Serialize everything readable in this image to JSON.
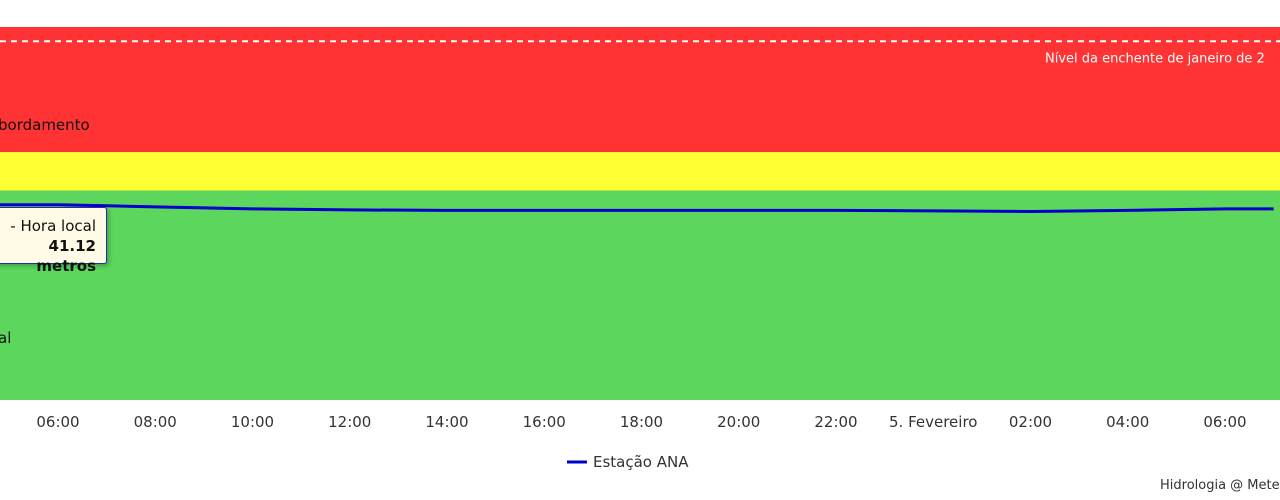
{
  "chart_data": {
    "type": "line",
    "series": [
      {
        "name": "Estação ANA",
        "color": "#0000cc",
        "points": [
          [
            "04:00",
            41.12
          ],
          [
            "06:00",
            41.12
          ],
          [
            "07:00",
            41.1
          ],
          [
            "08:00",
            41.08
          ],
          [
            "10:00",
            41.04
          ],
          [
            "12:00",
            41.02
          ],
          [
            "14:00",
            41.01
          ],
          [
            "16:00",
            41.01
          ],
          [
            "18:00",
            41.01
          ],
          [
            "20:00",
            41.01
          ],
          [
            "22:00",
            41.01
          ],
          [
            "00:00",
            41.0
          ],
          [
            "02:00",
            40.99
          ],
          [
            "04:00",
            41.01
          ],
          [
            "06:00",
            41.04
          ],
          [
            "07:00",
            41.04
          ]
        ]
      }
    ],
    "x_ticks": [
      "06:00",
      "08:00",
      "10:00",
      "12:00",
      "14:00",
      "16:00",
      "18:00",
      "20:00",
      "22:00",
      "5. Fevereiro",
      "02:00",
      "04:00",
      "06:00"
    ],
    "y_range": [
      37.3,
      44.6
    ],
    "bands": [
      {
        "from": 44.6,
        "to": 42.15,
        "color": "#ff3333",
        "label": "bordamento"
      },
      {
        "from": 42.15,
        "to": 41.4,
        "color": "#ffff33",
        "label": ""
      },
      {
        "from": 41.4,
        "to": 37.3,
        "color": "#5cd65c",
        "label": "al"
      }
    ],
    "plot_line": {
      "value": 44.32,
      "label": "Nível da enchente de janeiro de 2",
      "style": "dashed",
      "color": "#ffffff"
    },
    "legend": {
      "position": "bottom-center",
      "items": [
        "Estação ANA"
      ]
    }
  },
  "tooltip": {
    "line1": "- Hora local",
    "line2": "41.12 metros"
  },
  "credits": "Hidrologia @ Mete"
}
